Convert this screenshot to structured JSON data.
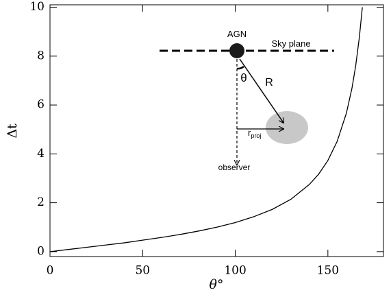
{
  "chart_data": {
    "type": "line",
    "xlabel": "θ°",
    "ylabel": "Δt",
    "x": [
      0,
      10,
      20,
      30,
      40,
      50,
      60,
      70,
      80,
      90,
      100,
      110,
      120,
      130,
      140,
      145,
      150,
      155,
      160,
      163,
      165,
      167,
      168.6
    ],
    "series": [
      {
        "color": "#000000",
        "values": [
          0,
          0.09,
          0.18,
          0.27,
          0.36,
          0.47,
          0.58,
          0.7,
          0.84,
          1.0,
          1.19,
          1.43,
          1.73,
          2.14,
          2.75,
          3.17,
          3.73,
          4.51,
          5.67,
          6.69,
          7.6,
          8.78,
          10.0
        ]
      }
    ],
    "xlim": [
      0,
      180
    ],
    "xticks": [
      0,
      50,
      100,
      150
    ],
    "ylim": [
      -0.2,
      10.1
    ],
    "yticks": [
      0,
      2,
      4,
      6,
      8,
      10
    ],
    "grid": false,
    "annotations": {
      "agn": "AGN",
      "sky_plane": "Sky plane",
      "theta": "θ",
      "r": "R",
      "r_proj": {
        "base": "r",
        "sub": "proj"
      },
      "observer": "observer"
    }
  }
}
